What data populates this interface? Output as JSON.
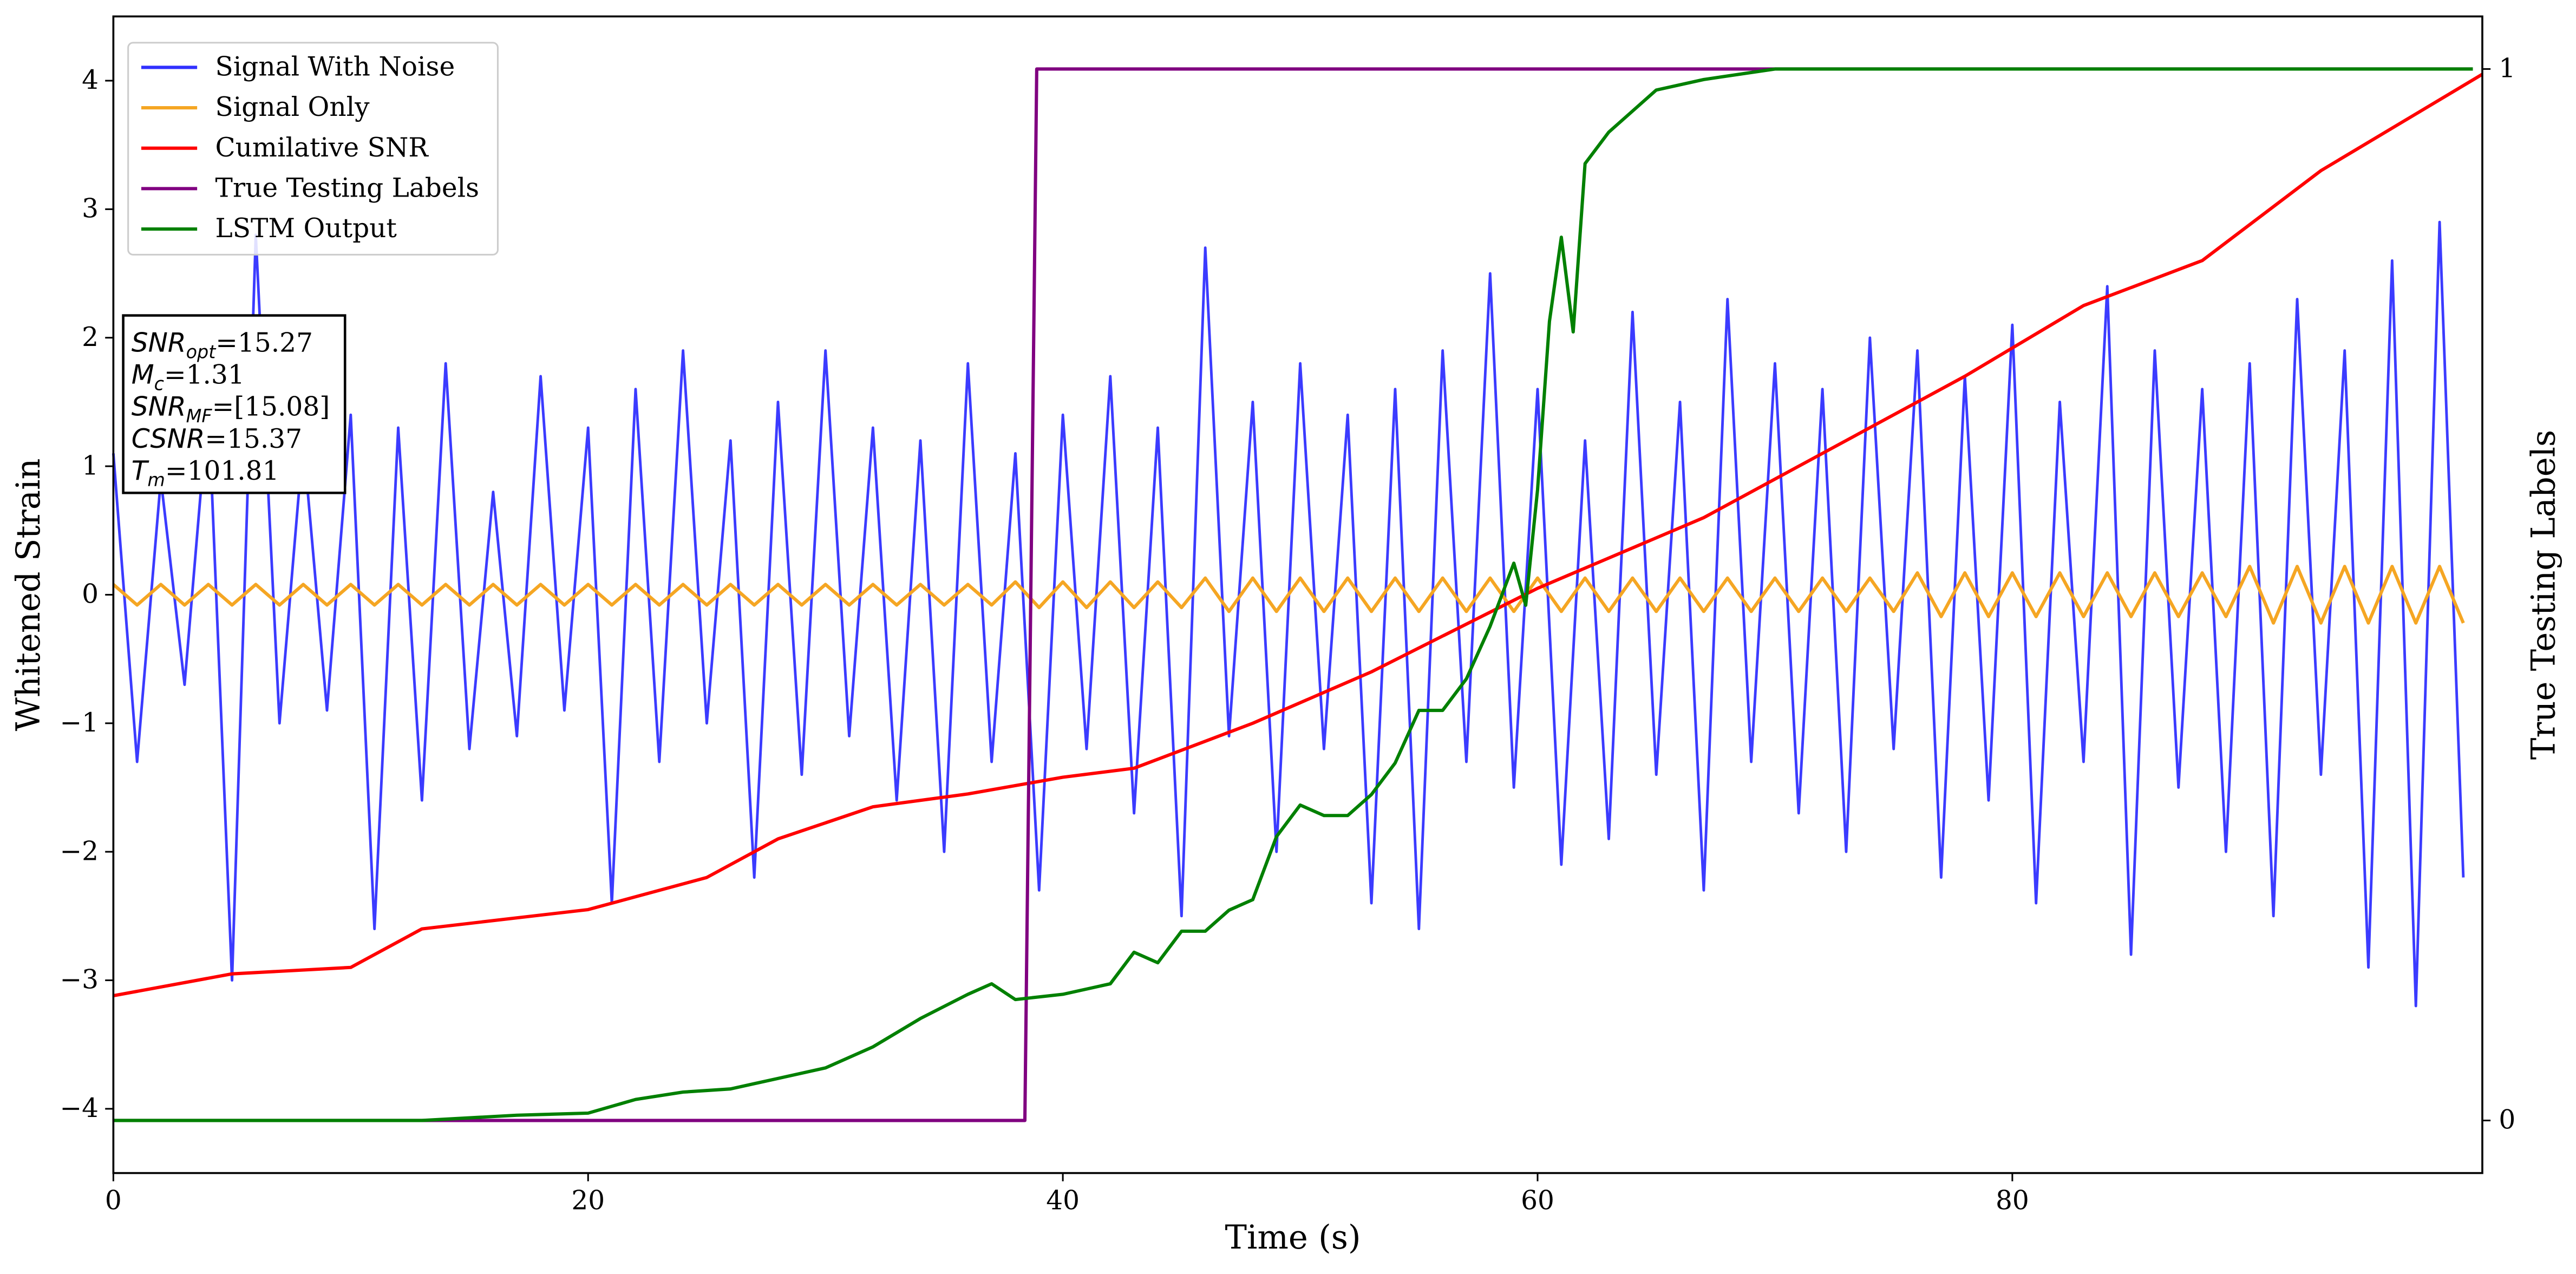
{
  "chart_data": {
    "type": "line",
    "xlabel": "Time (s)",
    "ylabel": "Whitened Strain",
    "y2label": "True Testing Labels",
    "xlim": [
      0,
      99.8
    ],
    "xticks": [
      0,
      20,
      40,
      60,
      80
    ],
    "ylim": [
      -4.5,
      4.5
    ],
    "yticks": [
      -4,
      -3,
      -2,
      -1,
      0,
      1,
      2,
      3,
      4
    ],
    "y2lim": [
      -0.05,
      1.05
    ],
    "y2ticks": [
      0,
      1
    ],
    "legend": "upper left",
    "x": [
      0,
      1,
      2,
      3,
      4,
      5,
      6,
      7,
      8,
      9,
      10,
      11,
      12,
      13,
      14,
      15,
      16,
      17,
      18,
      19,
      20,
      21,
      22,
      23,
      24,
      25,
      26,
      27,
      28,
      29,
      30,
      31,
      32,
      33,
      34,
      35,
      36,
      37,
      38,
      39,
      40,
      41,
      42,
      43,
      44,
      45,
      46,
      47,
      48,
      49,
      50,
      51,
      52,
      53,
      54,
      55,
      56,
      57,
      58,
      59,
      60,
      61,
      62,
      63,
      64,
      65,
      66,
      67,
      68,
      69,
      70,
      71,
      72,
      73,
      74,
      75,
      76,
      77,
      78,
      79,
      80,
      81,
      82,
      83,
      84,
      85,
      86,
      87,
      88,
      89,
      90,
      91,
      92,
      93,
      94,
      95,
      96,
      97,
      98,
      99
    ],
    "series": [
      {
        "name": "Signal With Noise",
        "color": "#3030ff",
        "values": [
          1.1,
          -1.3,
          0.9,
          -0.7,
          1.5,
          -3.0,
          2.8,
          -1.0,
          1.2,
          -0.9,
          1.4,
          -2.6,
          1.3,
          -1.6,
          1.8,
          -1.2,
          0.8,
          -1.1,
          1.7,
          -0.9,
          1.3,
          -2.4,
          1.6,
          -1.3,
          1.9,
          -1.0,
          1.2,
          -2.2,
          1.5,
          -1.4,
          1.9,
          -1.1,
          1.3,
          -1.6,
          1.2,
          -2.0,
          1.8,
          -1.3,
          1.1,
          -2.3,
          1.4,
          -1.2,
          1.7,
          -1.7,
          1.3,
          -2.5,
          2.7,
          -1.1,
          1.5,
          -2.0,
          1.8,
          -1.2,
          1.4,
          -2.4,
          1.6,
          -2.6,
          1.9,
          -1.3,
          2.5,
          -1.5,
          1.6,
          -2.1,
          1.2,
          -1.9,
          2.2,
          -1.4,
          1.5,
          -2.3,
          2.3,
          -1.3,
          1.8,
          -1.7,
          1.6,
          -2.0,
          2.0,
          -1.2,
          1.9,
          -2.2,
          1.7,
          -1.6,
          2.1,
          -2.4,
          1.5,
          -1.3,
          2.4,
          -2.8,
          1.9,
          -1.5,
          1.6,
          -2.0,
          1.8,
          -2.5,
          2.3,
          -1.4,
          1.9,
          -2.9,
          2.6,
          -3.2,
          2.9,
          -2.2
        ]
      },
      {
        "name": "Signal Only",
        "color": "#f5a623",
        "values": [
          0.08,
          -0.08,
          0.08,
          -0.08,
          0.08,
          -0.08,
          0.08,
          -0.08,
          0.08,
          -0.08,
          0.08,
          -0.08,
          0.08,
          -0.08,
          0.08,
          -0.08,
          0.08,
          -0.08,
          0.08,
          -0.08,
          0.08,
          -0.08,
          0.08,
          -0.08,
          0.08,
          -0.08,
          0.08,
          -0.08,
          0.08,
          -0.08,
          0.08,
          -0.08,
          0.08,
          -0.08,
          0.08,
          -0.08,
          0.08,
          -0.08,
          0.1,
          -0.1,
          0.1,
          -0.1,
          0.1,
          -0.1,
          0.1,
          -0.1,
          0.13,
          -0.13,
          0.13,
          -0.13,
          0.13,
          -0.13,
          0.13,
          -0.13,
          0.13,
          -0.13,
          0.13,
          -0.13,
          0.13,
          -0.13,
          0.13,
          -0.13,
          0.13,
          -0.13,
          0.13,
          -0.13,
          0.13,
          -0.13,
          0.13,
          -0.13,
          0.13,
          -0.13,
          0.13,
          -0.13,
          0.13,
          -0.13,
          0.17,
          -0.17,
          0.17,
          -0.17,
          0.17,
          -0.17,
          0.17,
          -0.17,
          0.17,
          -0.17,
          0.17,
          -0.17,
          0.17,
          -0.17,
          0.22,
          -0.22,
          0.22,
          -0.22,
          0.22,
          -0.22,
          0.22,
          -0.22,
          0.22,
          -0.22
        ]
      },
      {
        "name": "Cumilative SNR",
        "color": "#ff0000",
        "x": [
          0,
          5,
          10,
          13,
          20,
          25,
          28,
          32,
          36,
          40,
          43,
          48,
          53,
          60,
          67,
          72,
          78,
          83,
          88,
          93,
          99.8
        ],
        "values": [
          -3.12,
          -2.95,
          -2.9,
          -2.6,
          -2.45,
          -2.2,
          -1.9,
          -1.65,
          -1.55,
          -1.42,
          -1.35,
          -1.0,
          -0.6,
          0.05,
          0.6,
          1.1,
          1.7,
          2.25,
          2.6,
          3.3,
          4.05
        ]
      },
      {
        "name": "True Testing Labels",
        "color": "#800080",
        "axis": "y2",
        "x": [
          0,
          38.4,
          38.9,
          99.4
        ],
        "values": [
          0,
          0,
          1,
          1
        ]
      },
      {
        "name": "LSTM Output",
        "color": "#008000",
        "axis": "y2",
        "x": [
          0,
          13,
          17,
          20,
          22,
          24,
          26,
          28,
          30,
          32,
          34,
          36,
          37,
          38,
          40,
          42,
          43,
          44,
          45,
          46,
          47,
          48,
          49,
          50,
          51,
          52,
          53,
          54,
          55,
          56,
          57,
          58,
          59,
          59.5,
          60,
          60.5,
          61,
          61.5,
          62,
          63,
          64,
          65,
          67,
          70,
          99.4
        ],
        "values": [
          0,
          0,
          0.005,
          0.007,
          0.02,
          0.027,
          0.03,
          0.04,
          0.05,
          0.07,
          0.097,
          0.12,
          0.13,
          0.115,
          0.12,
          0.13,
          0.16,
          0.15,
          0.18,
          0.18,
          0.2,
          0.21,
          0.27,
          0.3,
          0.29,
          0.29,
          0.31,
          0.34,
          0.39,
          0.39,
          0.42,
          0.47,
          0.53,
          0.49,
          0.6,
          0.76,
          0.84,
          0.75,
          0.91,
          0.94,
          0.96,
          0.98,
          0.99,
          1,
          1
        ]
      }
    ],
    "annotations": [
      {
        "symbol": "SNR",
        "subscript": "opt",
        "rest": "=15.27"
      },
      {
        "symbol": "M",
        "subscript": "c",
        "rest": "=1.31"
      },
      {
        "symbol": "SNR",
        "subscript": "MF",
        "rest": "=[15.08]"
      },
      {
        "symbol": "CSNR",
        "subscript": "",
        "rest": "=15.37"
      },
      {
        "symbol": "T",
        "subscript": "m",
        "rest": "=101.81"
      }
    ]
  }
}
